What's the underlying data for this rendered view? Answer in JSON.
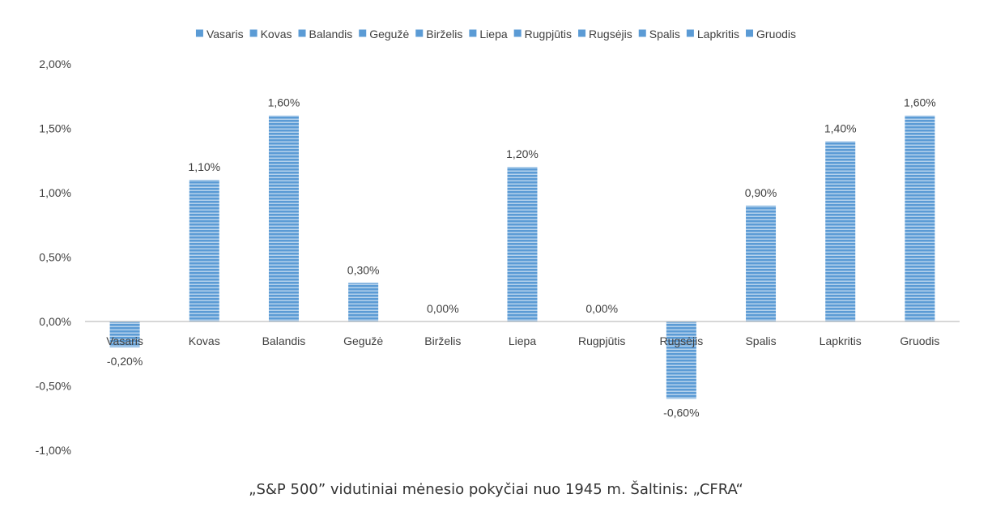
{
  "chart_data": {
    "type": "bar",
    "categories": [
      "Vasaris",
      "Kovas",
      "Balandis",
      "Gegužė",
      "Birželis",
      "Liepa",
      "Rugpjūtis",
      "Rugsėjis",
      "Spalis",
      "Lapkritis",
      "Gruodis"
    ],
    "values": [
      -0.2,
      1.1,
      1.6,
      0.3,
      0.0,
      1.2,
      0.0,
      -0.6,
      0.9,
      1.4,
      1.6
    ],
    "data_labels": [
      "-0,20%",
      "1,10%",
      "1,60%",
      "0,30%",
      "0,00%",
      "1,20%",
      "0,00%",
      "-0,60%",
      "0,90%",
      "1,40%",
      "1,60%"
    ],
    "legend": [
      "Vasaris",
      "Kovas",
      "Balandis",
      "Gegužė",
      "Birželis",
      "Liepa",
      "Rugpjūtis",
      "Rugsėjis",
      "Spalis",
      "Lapkritis",
      "Gruodis"
    ],
    "legend_position": "top",
    "ylim": [
      -1.0,
      2.0
    ],
    "yticks": [
      2.0,
      1.5,
      1.0,
      0.5,
      0.0,
      -0.5,
      -1.0
    ],
    "ytick_labels": [
      "2,00%",
      "1,50%",
      "1,00%",
      "0,50%",
      "0,00%",
      "-0,50%",
      "-1,00%"
    ],
    "grid": false,
    "bar_color": "#5b9bd5",
    "bar_stripe_color": "#ffffff",
    "title": "",
    "xlabel": "",
    "ylabel": ""
  },
  "caption": "„S&P 500” vidutiniai mėnesio pokyčiai nuo 1945 m. Šaltinis: „CFRA“"
}
